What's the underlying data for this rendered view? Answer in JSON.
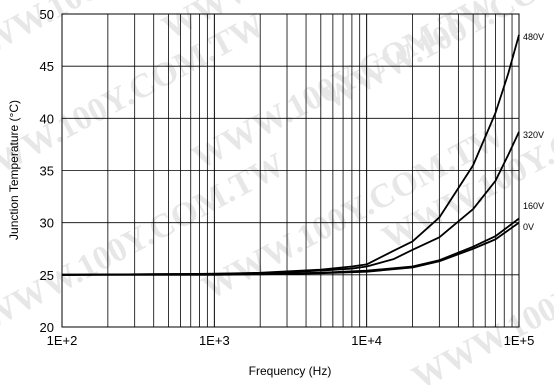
{
  "watermark": "WWW.100Y.COM.TW",
  "chart_data": {
    "type": "line",
    "title": "",
    "xlabel": "Frequency (Hz)",
    "ylabel": "Junction Temperature (°C)",
    "xscale": "log",
    "xlim": [
      100,
      100000
    ],
    "ylim": [
      20,
      50
    ],
    "grid": true,
    "xticks": [
      100,
      1000,
      10000,
      100000
    ],
    "xtick_labels": [
      "1E+2",
      "1E+3",
      "1E+4",
      "1E+5"
    ],
    "yticks": [
      20,
      25,
      30,
      35,
      40,
      45,
      50
    ],
    "ytick_labels": [
      "20",
      "25",
      "30",
      "35",
      "40",
      "45",
      "50"
    ],
    "legend": "line-end labels",
    "series": [
      {
        "name": "480V",
        "x": [
          100,
          1000,
          2000,
          5000,
          8000,
          10000,
          15000,
          20000,
          30000,
          50000,
          70000,
          85000,
          100000
        ],
        "y": [
          25,
          25.1,
          25.2,
          25.5,
          25.8,
          26.0,
          27.3,
          28.2,
          30.5,
          35.5,
          40.5,
          44.3,
          48.0
        ]
      },
      {
        "name": "320V",
        "x": [
          100,
          1000,
          2000,
          5000,
          8000,
          10000,
          15000,
          20000,
          30000,
          50000,
          70000,
          85000,
          100000
        ],
        "y": [
          25,
          25.1,
          25.15,
          25.4,
          25.6,
          25.8,
          26.5,
          27.4,
          28.6,
          31.3,
          34.0,
          36.5,
          38.7
        ]
      },
      {
        "name": "160V",
        "x": [
          100,
          1000,
          2000,
          5000,
          10000,
          20000,
          30000,
          50000,
          70000,
          100000
        ],
        "y": [
          25,
          25.05,
          25.1,
          25.2,
          25.4,
          25.8,
          26.4,
          27.7,
          28.7,
          30.4
        ]
      },
      {
        "name": "0V",
        "x": [
          100,
          1000,
          2000,
          5000,
          10000,
          20000,
          30000,
          50000,
          70000,
          100000
        ],
        "y": [
          25,
          25.0,
          25.05,
          25.15,
          25.3,
          25.7,
          26.3,
          27.5,
          28.4,
          30.0
        ]
      }
    ],
    "colors": {
      "line": "#000000",
      "grid": "#000000",
      "background": "#ffffff"
    }
  }
}
